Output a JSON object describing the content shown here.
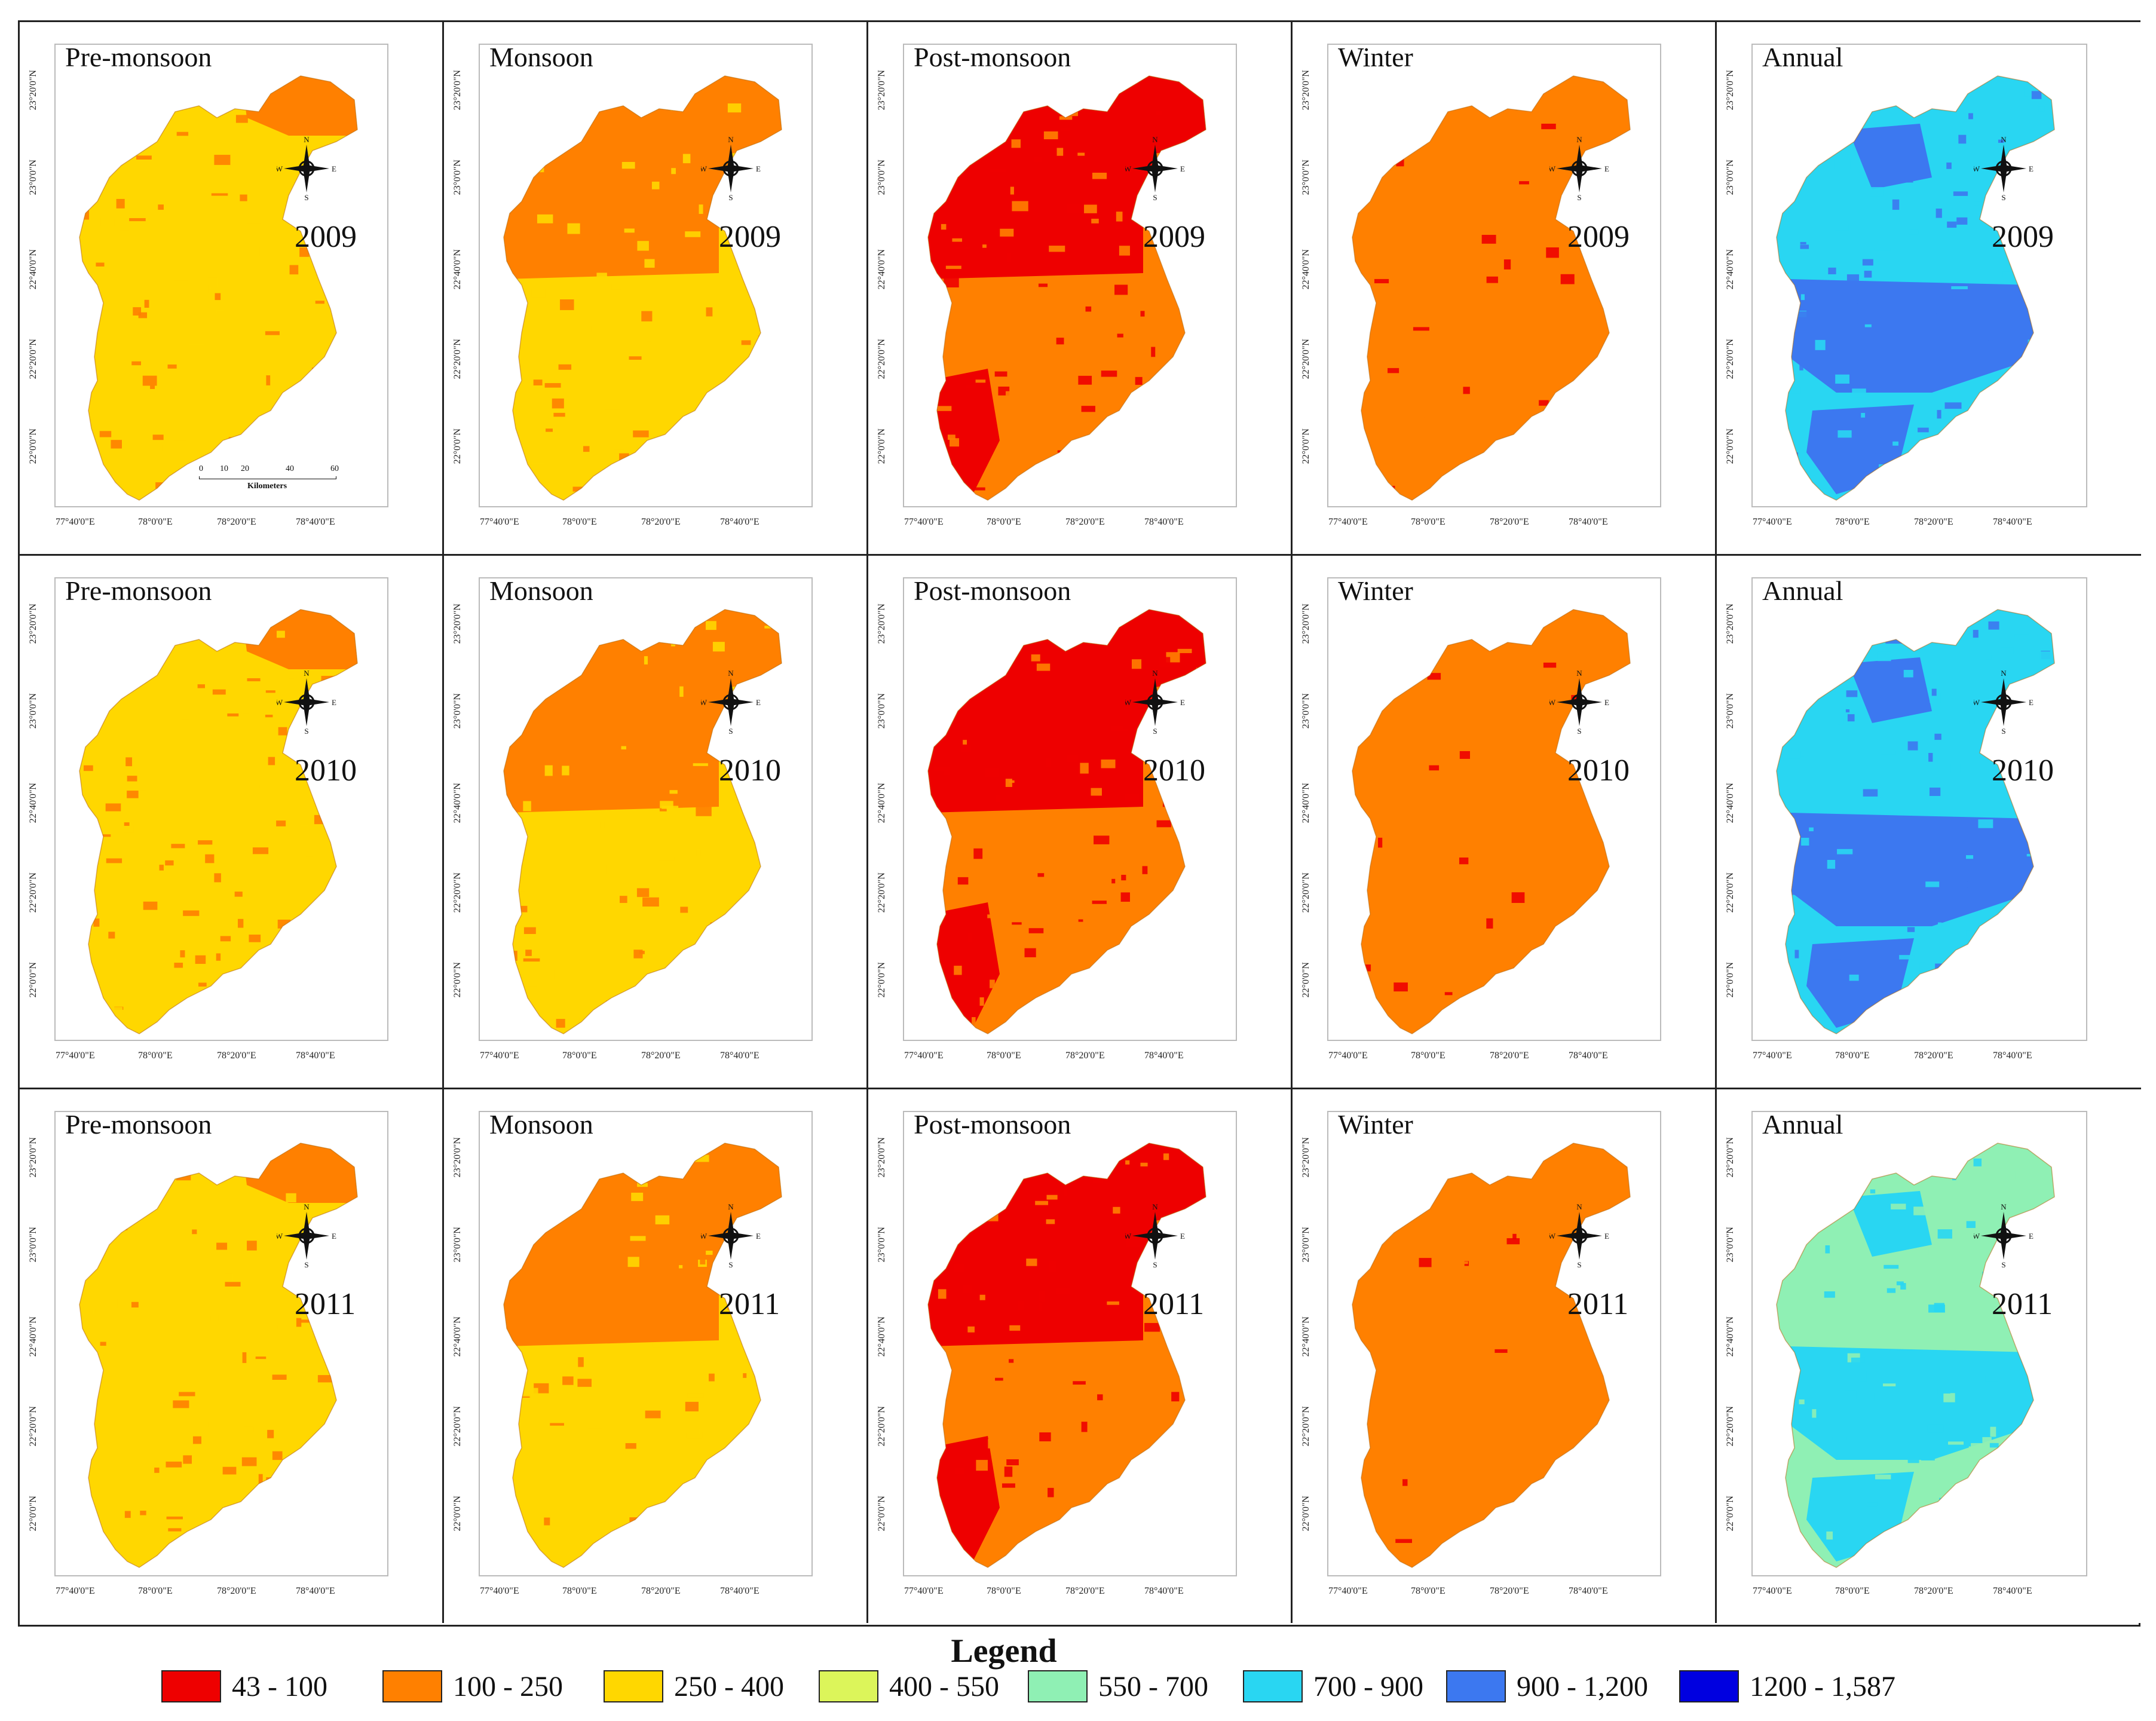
{
  "legend": {
    "title": "Legend",
    "classes": [
      {
        "label": "43 - 100",
        "color": "#ee0000"
      },
      {
        "label": "100 - 250",
        "color": "#ff8000"
      },
      {
        "label": "250 - 400",
        "color": "#ffd700"
      },
      {
        "label": "400 - 550",
        "color": "#dcf55a"
      },
      {
        "label": "550 - 700",
        "color": "#8ff0b4"
      },
      {
        "label": "700 - 900",
        "color": "#29d6f2"
      },
      {
        "label": "900 - 1,200",
        "color": "#3c78f0"
      },
      {
        "label": "1200 - 1,587",
        "color": "#0000e0"
      }
    ]
  },
  "axis_labels": {
    "longitudes": [
      "77°40'0\"E",
      "78°0'0\"E",
      "78°20'0\"E",
      "78°40'0\"E"
    ],
    "latitudes": [
      "23°20'0\"N",
      "23°0'0\"N",
      "22°40'0\"N",
      "22°20'0\"N",
      "22°0'0\"N"
    ]
  },
  "compass": {
    "n": "N",
    "s": "S",
    "e": "E",
    "w": "W"
  },
  "scale_bar": {
    "ticks": [
      "0",
      "10",
      "20",
      "40",
      "60"
    ],
    "unit": "Kilometers"
  },
  "rows": [
    {
      "year": "2009",
      "panels": [
        {
          "season": "Pre-monsoon",
          "base": "250 - 400",
          "secondary": "100 - 250"
        },
        {
          "season": "Monsoon",
          "base": "250 - 400",
          "secondary": "100 - 250"
        },
        {
          "season": "Post-monsoon",
          "base": "100 - 250",
          "secondary": "43 - 100"
        },
        {
          "season": "Winter",
          "base": "100 - 250",
          "secondary": "43 - 100"
        },
        {
          "season": "Annual",
          "base": "700 - 900",
          "secondary": "900 - 1,200"
        }
      ]
    },
    {
      "year": "2010",
      "panels": [
        {
          "season": "Pre-monsoon",
          "base": "250 - 400",
          "secondary": "100 - 250"
        },
        {
          "season": "Monsoon",
          "base": "250 - 400",
          "secondary": "100 - 250"
        },
        {
          "season": "Post-monsoon",
          "base": "100 - 250",
          "secondary": "43 - 100"
        },
        {
          "season": "Winter",
          "base": "100 - 250",
          "secondary": "43 - 100"
        },
        {
          "season": "Annual",
          "base": "700 - 900",
          "secondary": "900 - 1,200"
        }
      ]
    },
    {
      "year": "2011",
      "panels": [
        {
          "season": "Pre-monsoon",
          "base": "250 - 400",
          "secondary": "100 - 250"
        },
        {
          "season": "Monsoon",
          "base": "250 - 400",
          "secondary": "100 - 250"
        },
        {
          "season": "Post-monsoon",
          "base": "100 - 250",
          "secondary": "43 - 100"
        },
        {
          "season": "Winter",
          "base": "100 - 250",
          "secondary": "43 - 100"
        },
        {
          "season": "Annual",
          "base": "550 - 700",
          "secondary": "700 - 900"
        }
      ]
    }
  ]
}
